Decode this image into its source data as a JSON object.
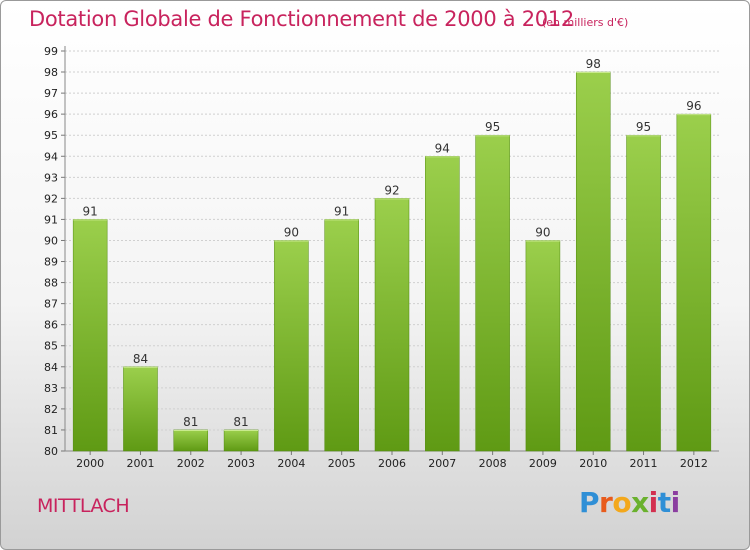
{
  "title": "Dotation Globale de Fonctionnement de 2000 à 2012",
  "unit": "(en milliers d'€)",
  "commune": "MITTLACH",
  "logo": {
    "text": "Proxiti"
  },
  "colors": {
    "title": "#c8235d",
    "bar_light": "#9bcf4c",
    "bar_dark": "#5f9a14",
    "grid": "#d0d0d0"
  },
  "chart_data": {
    "type": "bar",
    "categories": [
      "2000",
      "2001",
      "2002",
      "2003",
      "2004",
      "2005",
      "2006",
      "2007",
      "2008",
      "2009",
      "2010",
      "2011",
      "2012"
    ],
    "values": [
      91,
      84,
      81,
      81,
      90,
      91,
      92,
      94,
      95,
      90,
      98,
      95,
      96
    ],
    "ylim": [
      80,
      99
    ],
    "yticks": [
      80,
      81,
      82,
      83,
      84,
      85,
      86,
      87,
      88,
      89,
      90,
      91,
      92,
      93,
      94,
      95,
      96,
      97,
      98,
      99
    ],
    "grid": true,
    "data_labels": true
  }
}
